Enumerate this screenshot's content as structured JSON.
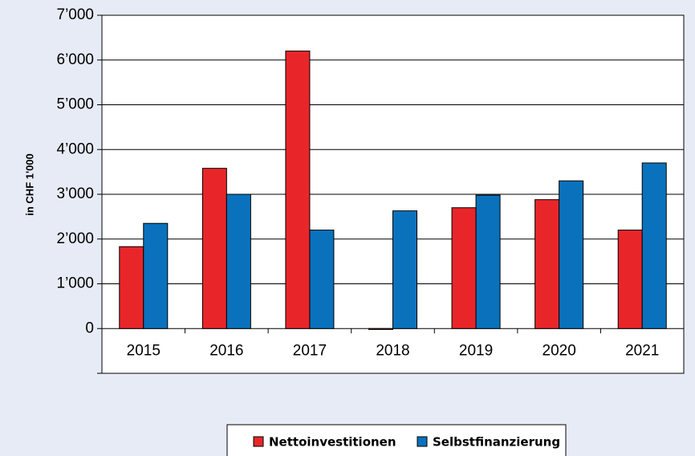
{
  "chart_data": {
    "type": "bar",
    "y_axis_label": "in CHF 1'000",
    "categories": [
      "2015",
      "2016",
      "2017",
      "2018",
      "2019",
      "2020",
      "2021"
    ],
    "series": [
      {
        "name": "Nettoinvestitionen",
        "color": "#e8262a",
        "values": [
          1830,
          3580,
          6200,
          -20,
          2700,
          2880,
          2200
        ]
      },
      {
        "name": "Selbstfinanzierung",
        "color": "#0a72bc",
        "values": [
          2350,
          3000,
          2200,
          2630,
          2980,
          3300,
          3700
        ]
      }
    ],
    "ylim": [
      -1000,
      7000
    ],
    "yticks": [
      0,
      {
        "value": 1000,
        "label": "1’000"
      },
      {
        "value": 2000,
        "label": "2’000"
      },
      {
        "value": 3000,
        "label": "3’000"
      },
      {
        "value": 4000,
        "label": "4’000"
      },
      {
        "value": 5000,
        "label": "5’000"
      },
      {
        "value": 6000,
        "label": "6’000"
      },
      {
        "value": 7000,
        "label": "7’000"
      }
    ],
    "grid": true
  }
}
